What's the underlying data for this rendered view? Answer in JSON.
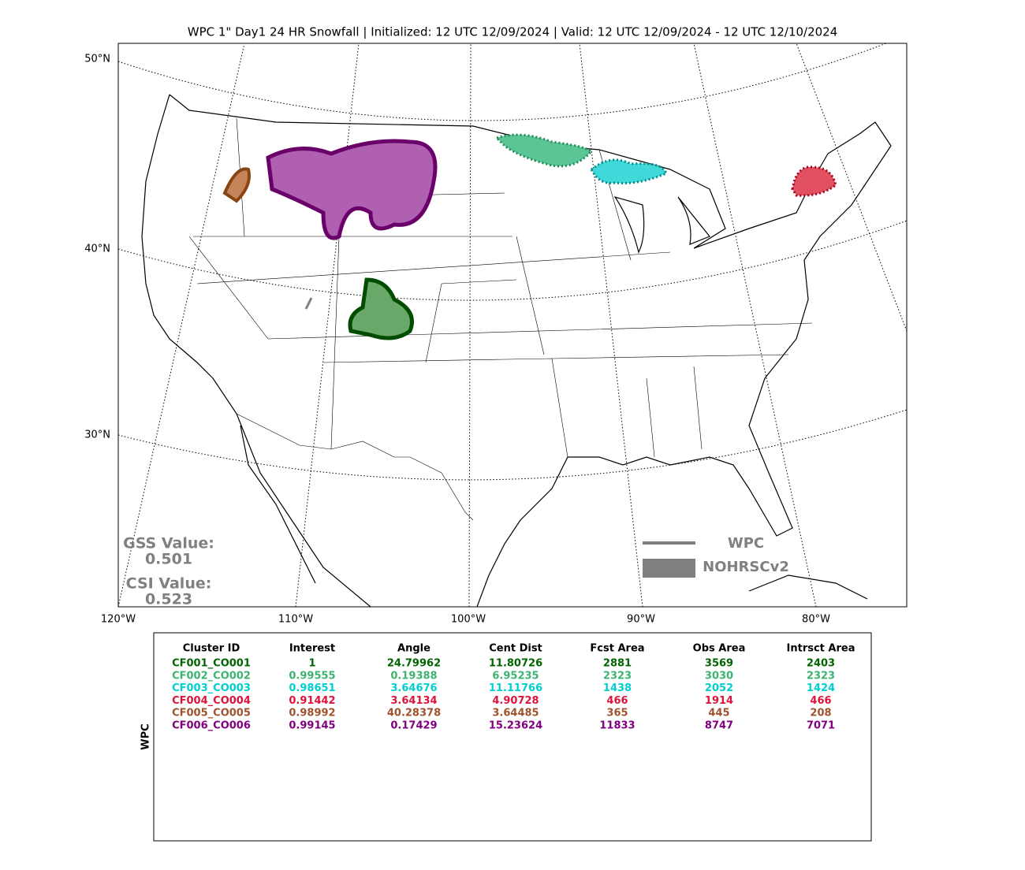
{
  "title": "WPC 1\" Day1 24 HR Snowfall | Initialized: 12 UTC 12/09/2024 | Valid: 12 UTC 12/09/2024 - 12 UTC 12/10/2024",
  "map": {
    "lat_labels": [
      "50°N",
      "40°N",
      "30°N"
    ],
    "lon_labels": [
      "120°W",
      "110°W",
      "100°W",
      "90°W",
      "80°W"
    ],
    "scores": [
      {
        "label": "GSS Value:",
        "value": "0.501"
      },
      {
        "label": "CSI Value:",
        "value": "0.523"
      }
    ],
    "legend": [
      "WPC",
      "NOHRSCv2"
    ]
  },
  "table": {
    "side_label": "WPC",
    "columns": [
      "Cluster ID",
      "Interest",
      "Angle",
      "Cent Dist",
      "Fcst Area",
      "Obs Area",
      "Intrsct Area"
    ],
    "rows": [
      {
        "color": "#006400",
        "cells": [
          "CF001_CO001",
          "1",
          "24.79962",
          "11.80726",
          "2881",
          "3569",
          "2403"
        ]
      },
      {
        "color": "#3cb371",
        "cells": [
          "CF002_CO002",
          "0.99555",
          "0.19388",
          "6.95235",
          "2323",
          "3030",
          "2323"
        ]
      },
      {
        "color": "#00ced1",
        "cells": [
          "CF003_CO003",
          "0.98651",
          "3.64676",
          "11.11766",
          "1438",
          "2052",
          "1424"
        ]
      },
      {
        "color": "#dc143c",
        "cells": [
          "CF004_CO004",
          "0.91442",
          "3.64134",
          "4.90728",
          "466",
          "1914",
          "466"
        ]
      },
      {
        "color": "#a0522d",
        "cells": [
          "CF005_CO005",
          "0.98992",
          "40.28378",
          "3.64485",
          "365",
          "445",
          "208"
        ]
      },
      {
        "color": "#800080",
        "cells": [
          "CF006_CO006",
          "0.99145",
          "0.17429",
          "15.23624",
          "11833",
          "8747",
          "7071"
        ]
      }
    ]
  }
}
